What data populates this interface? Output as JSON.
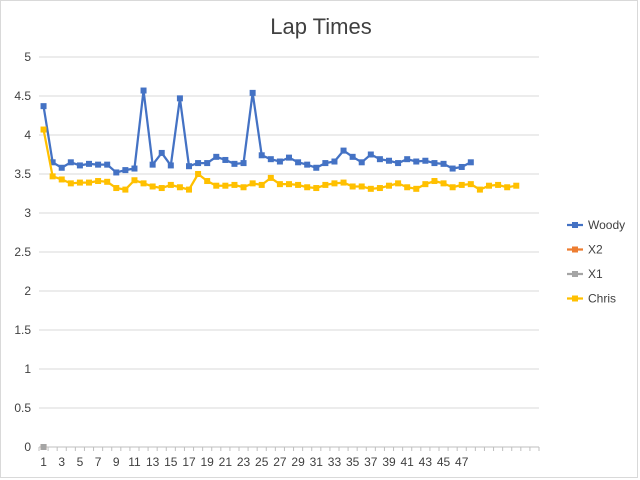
{
  "chart_data": {
    "type": "line",
    "title": "Lap Times",
    "xlabel": "",
    "ylabel": "",
    "ylim": [
      0,
      5
    ],
    "y_ticks": [
      "0",
      "0.5",
      "1",
      "1.5",
      "2",
      "2.5",
      "3",
      "3.5",
      "4",
      "4.5",
      "5"
    ],
    "x_tick_labels": [
      "1",
      "3",
      "5",
      "7",
      "9",
      "11",
      "13",
      "15",
      "17",
      "19",
      "21",
      "23",
      "25",
      "27",
      "29",
      "31",
      "33",
      "35",
      "37",
      "39",
      "41",
      "43",
      "45",
      "47"
    ],
    "x_count": 55,
    "grid": true,
    "legend_position": "right",
    "series": [
      {
        "name": "Woody",
        "color": "#4472C4",
        "marker": "square",
        "values": [
          4.37,
          3.65,
          3.58,
          3.65,
          3.61,
          3.63,
          3.62,
          3.62,
          3.52,
          3.55,
          3.57,
          4.57,
          3.62,
          3.77,
          3.61,
          4.47,
          3.6,
          3.64,
          3.64,
          3.72,
          3.68,
          3.63,
          3.64,
          4.54,
          3.74,
          3.69,
          3.66,
          3.71,
          3.65,
          3.62,
          3.58,
          3.64,
          3.66,
          3.8,
          3.72,
          3.65,
          3.75,
          3.69,
          3.67,
          3.64,
          3.69,
          3.66,
          3.67,
          3.64,
          3.63,
          3.57,
          3.59,
          3.65
        ]
      },
      {
        "name": "X2",
        "color": "#ED7D31",
        "marker": "square",
        "values": [
          0
        ]
      },
      {
        "name": "X1",
        "color": "#A5A5A5",
        "marker": "square",
        "values": [
          0
        ]
      },
      {
        "name": "Chris",
        "color": "#FFC000",
        "marker": "square",
        "values": [
          4.07,
          3.47,
          3.43,
          3.38,
          3.39,
          3.39,
          3.41,
          3.4,
          3.32,
          3.3,
          3.42,
          3.38,
          3.34,
          3.32,
          3.36,
          3.33,
          3.3,
          3.5,
          3.41,
          3.35,
          3.35,
          3.36,
          3.33,
          3.38,
          3.36,
          3.45,
          3.37,
          3.37,
          3.36,
          3.33,
          3.32,
          3.36,
          3.38,
          3.39,
          3.34,
          3.34,
          3.31,
          3.32,
          3.35,
          3.38,
          3.33,
          3.31,
          3.37,
          3.41,
          3.38,
          3.33,
          3.36,
          3.37,
          3.3,
          3.35,
          3.36,
          3.33,
          3.35
        ]
      }
    ]
  }
}
